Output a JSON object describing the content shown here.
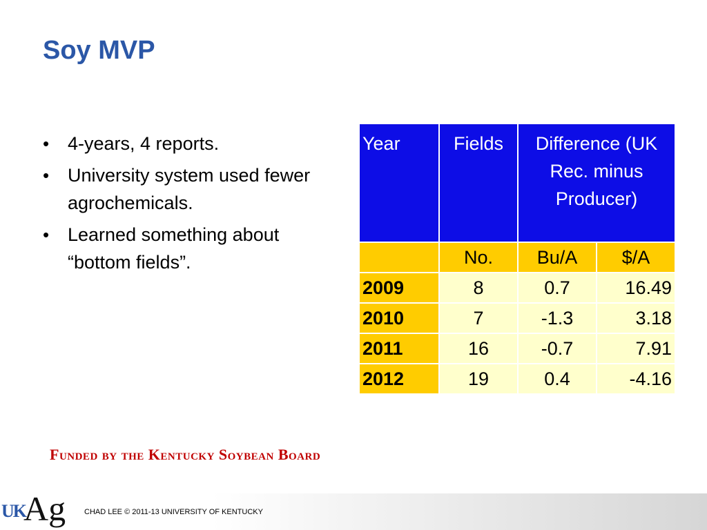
{
  "slide": {
    "title": "Soy MVP",
    "bullets": [
      "4-years, 4 reports.",
      "University system used fewer agrochemicals.",
      "Learned something about “bottom fields”."
    ],
    "funded_by": "Funded by the Kentucky Soybean Board",
    "footer": {
      "logo_uk": "UK",
      "logo_ag": "Ag",
      "credit": "CHAD LEE © 2011-13 UNIVERSITY OF KENTUCKY"
    }
  },
  "table": {
    "header": {
      "year": "Year",
      "fields": "Fields",
      "difference": "Difference (UK Rec. minus Producer)"
    },
    "subheader": {
      "blank": "",
      "no": "No.",
      "bu": "Bu/A",
      "dollar": "$/A"
    },
    "rows": [
      {
        "year": "2009",
        "no": "8",
        "bu": "0.7",
        "dollar": "16.49"
      },
      {
        "year": "2010",
        "no": "7",
        "bu": "-1.3",
        "dollar": "3.18"
      },
      {
        "year": "2011",
        "no": "16",
        "bu": "-0.7",
        "dollar": "7.91"
      },
      {
        "year": "2012",
        "no": "19",
        "bu": "0.4",
        "dollar": "-4.16"
      }
    ]
  },
  "colors": {
    "title": "#2b57a7",
    "table_header": "#0d0de6",
    "table_sub": "#ffcc00",
    "table_cell": "#ffffcc",
    "funded": "#c00000"
  }
}
